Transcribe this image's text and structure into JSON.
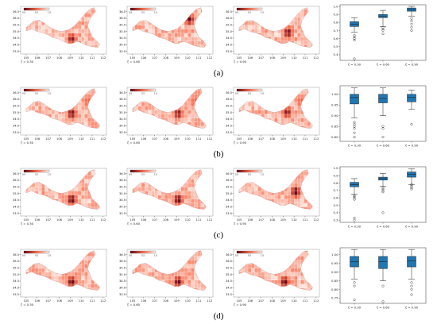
{
  "figure": {
    "panel_labels": [
      "(a)",
      "(b)",
      "(c)",
      "(d)"
    ],
    "map_xticks": [
      "105",
      "106",
      "107",
      "108",
      "109",
      "110",
      "111",
      "112"
    ],
    "colorbar_ticks": [
      "0.0",
      "0.5",
      "1.0"
    ],
    "map_captions": [
      "ζ = 0.30",
      "ζ = 0.60",
      "ζ = 0.90"
    ],
    "colormap": {
      "low": "#fff5f0",
      "mid": "#fb6a4a",
      "high": "#67000d"
    },
    "box_color": "#1f77b4",
    "rows": [
      {
        "label": "(a)",
        "map_yticks": [
          "33.5",
          "34.0",
          "34.5",
          "35.0",
          "35.5",
          "36.0",
          "36.5"
        ],
        "hotspots": [
          {
            "x": 109.0,
            "y": 34.3,
            "v": 0.9
          },
          {
            "x": 110.0,
            "y": 35.8,
            "v": 1.0
          },
          {
            "x": 109.3,
            "y": 34.8,
            "v": 0.95
          }
        ]
      },
      {
        "label": "(b)",
        "map_yticks": [
          "33.5",
          "34.0",
          "34.5",
          "35.0",
          "35.5",
          "36.0",
          "36.5"
        ],
        "hotspots": [
          {
            "x": 109.0,
            "y": 34.8,
            "v": 0.95
          },
          {
            "x": 109.0,
            "y": 34.8,
            "v": 0.9
          },
          {
            "x": 109.2,
            "y": 34.9,
            "v": 0.9
          }
        ]
      },
      {
        "label": "(c)",
        "map_yticks": [
          "33.5",
          "34.0",
          "34.5",
          "35.0",
          "35.5",
          "36.0",
          "36.5"
        ],
        "hotspots": [
          {
            "x": 109.0,
            "y": 34.4,
            "v": 1.0
          },
          {
            "x": 109.0,
            "y": 34.4,
            "v": 1.0
          },
          {
            "x": 110.0,
            "y": 35.0,
            "v": 1.0
          }
        ]
      },
      {
        "label": "(d)",
        "map_yticks": [
          "33.5",
          "34.0",
          "34.5",
          "35.0",
          "35.5",
          "36.0",
          "36.5"
        ],
        "hotspots": [
          {
            "x": 109.0,
            "y": 34.3,
            "v": 1.0
          },
          {
            "x": 109.0,
            "y": 34.3,
            "v": 1.0
          },
          {
            "x": 109.0,
            "y": 34.3,
            "v": 1.0
          }
        ]
      }
    ]
  },
  "chart_data": [
    {
      "type": "box",
      "panel": "(a)",
      "categories": [
        "ζ = 0.30",
        "ζ = 0.60",
        "ζ = 0.90"
      ],
      "yticks": [
        "0.4",
        "0.5",
        "0.6",
        "0.7",
        "0.8",
        "0.9",
        "1.0"
      ],
      "ylim": [
        0.33,
        1.02
      ],
      "boxes": [
        {
          "whislo": 0.68,
          "q1": 0.75,
          "med": 0.78,
          "q3": 0.81,
          "whishi": 0.86,
          "fliers": [
            0.35,
            0.58,
            0.6,
            0.62,
            0.64
          ]
        },
        {
          "whislo": 0.75,
          "q1": 0.86,
          "med": 0.88,
          "q3": 0.9,
          "whishi": 0.95,
          "fliers": [
            0.66,
            0.7,
            0.72,
            0.74
          ]
        },
        {
          "whislo": 0.88,
          "q1": 0.94,
          "med": 0.96,
          "q3": 0.98,
          "whishi": 1.0,
          "fliers": [
            0.7,
            0.74,
            0.78,
            0.82,
            0.85
          ]
        }
      ]
    },
    {
      "type": "box",
      "panel": "(b)",
      "categories": [
        "ζ = 0.30",
        "ζ = 0.60",
        "ζ = 0.90"
      ],
      "yticks": [
        "0.80",
        "0.85",
        "0.90",
        "0.95",
        "1.00"
      ],
      "ylim": [
        0.78,
        1.04
      ],
      "boxes": [
        {
          "whislo": 0.89,
          "q1": 0.955,
          "med": 0.985,
          "q3": 1.0,
          "whishi": 1.03,
          "fliers": [
            0.8,
            0.82,
            0.84,
            0.85,
            0.86,
            0.87
          ]
        },
        {
          "whislo": 0.9,
          "q1": 0.96,
          "med": 0.98,
          "q3": 1.0,
          "whishi": 1.03,
          "fliers": [
            0.8,
            0.84,
            0.85
          ]
        },
        {
          "whislo": 0.93,
          "q1": 0.965,
          "med": 0.985,
          "q3": 1.0,
          "whishi": 1.02,
          "fliers": [
            0.86
          ]
        }
      ]
    },
    {
      "type": "box",
      "panel": "(c)",
      "categories": [
        "ζ = 0.30",
        "ζ = 0.60",
        "ζ = 0.90"
      ],
      "yticks": [
        "0.3",
        "0.4",
        "0.5",
        "0.6",
        "0.7",
        "0.8",
        "0.9",
        "1.0"
      ],
      "ylim": [
        0.27,
        1.02
      ],
      "boxes": [
        {
          "whislo": 0.65,
          "q1": 0.75,
          "med": 0.78,
          "q3": 0.81,
          "whishi": 0.86,
          "fliers": [
            0.3,
            0.33,
            0.58,
            0.6,
            0.62,
            0.63
          ]
        },
        {
          "whislo": 0.76,
          "q1": 0.84,
          "med": 0.86,
          "q3": 0.88,
          "whishi": 0.93,
          "fliers": [
            0.4,
            0.68,
            0.7,
            0.72,
            0.74
          ]
        },
        {
          "whislo": 0.78,
          "q1": 0.88,
          "med": 0.92,
          "q3": 0.95,
          "whishi": 0.99,
          "fliers": [
            0.72,
            0.74,
            0.76,
            0.78
          ]
        }
      ]
    },
    {
      "type": "box",
      "panel": "(d)",
      "categories": [
        "ζ = 0.30",
        "ζ = 0.60",
        "ζ = 0.90"
      ],
      "yticks": [
        "0.75",
        "0.80",
        "0.85",
        "0.90",
        "0.95",
        "1.00"
      ],
      "ylim": [
        0.72,
        1.04
      ],
      "boxes": [
        {
          "whislo": 0.86,
          "q1": 0.93,
          "med": 0.96,
          "q3": 0.99,
          "whishi": 1.03,
          "fliers": [
            0.74,
            0.82,
            0.84
          ]
        },
        {
          "whislo": 0.85,
          "q1": 0.92,
          "med": 0.96,
          "q3": 0.99,
          "whishi": 1.03,
          "fliers": [
            0.73,
            0.82
          ]
        },
        {
          "whislo": 0.86,
          "q1": 0.93,
          "med": 0.965,
          "q3": 0.99,
          "whishi": 1.03,
          "fliers": [
            0.77,
            0.8,
            0.82,
            0.84
          ]
        }
      ]
    }
  ]
}
